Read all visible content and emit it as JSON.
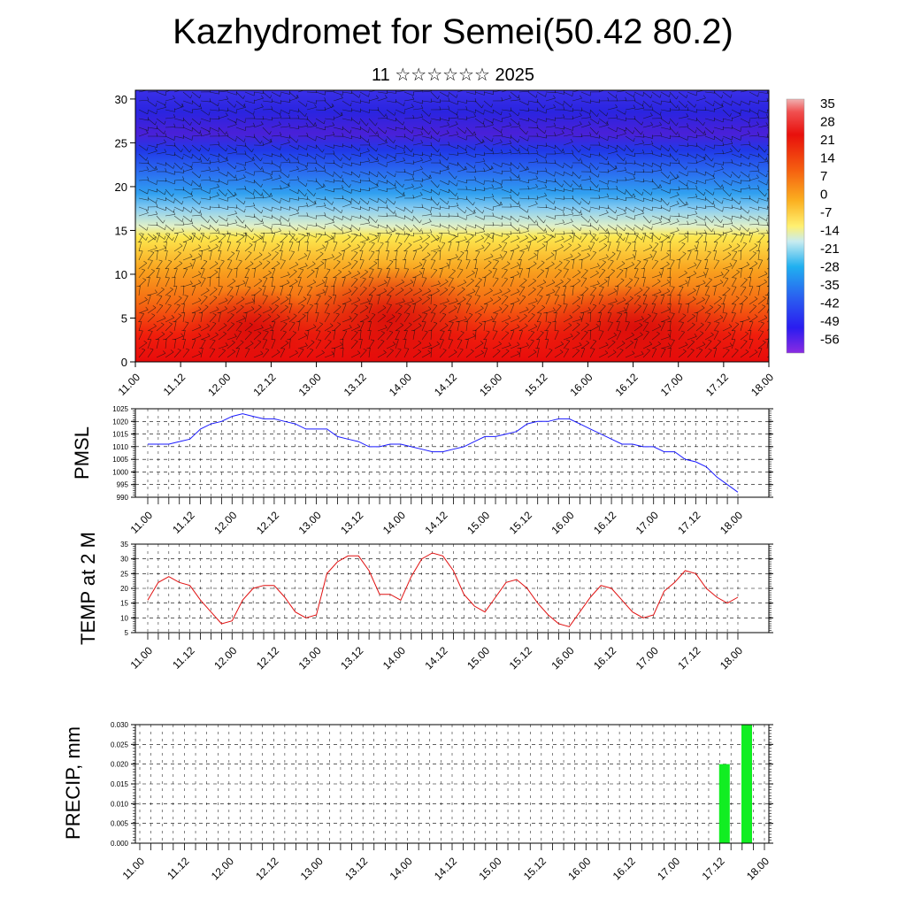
{
  "header": {
    "title": "Kazhydromet for Semei(50.42 80.2)",
    "subtitle": "11 ☆☆☆☆☆☆ 2025"
  },
  "chart_data": [
    {
      "type": "heatmap",
      "title": "Kazhydromet for Semei(50.42 80.2)",
      "subtitle": "11 ☆☆☆☆☆☆ 2025",
      "x_ticks": [
        "11.00",
        "11.12",
        "12.00",
        "12.12",
        "13.00",
        "13.12",
        "14.00",
        "14.12",
        "15.00",
        "15.12",
        "16.00",
        "16.12",
        "17.00",
        "17.12",
        "18.00"
      ],
      "y_ticks": [
        0,
        5,
        10,
        15,
        20,
        25,
        30
      ],
      "ylim": [
        0,
        31
      ],
      "colorbar_labels": [
        "35",
        "28",
        "21",
        "14",
        "7",
        "0",
        "-7",
        "-14",
        "-21",
        "-28",
        "-35",
        "-42",
        "-49",
        "-56"
      ],
      "description_layers": "temperature shading with wind barbs",
      "colors": {
        "hot": "#e8100c",
        "mid": "#fde24a",
        "cold": "#2634f0"
      }
    },
    {
      "type": "line",
      "ylabel": "PMSL",
      "ylim": [
        990,
        1025
      ],
      "y_ticks": [
        990,
        995,
        1000,
        1005,
        1010,
        1015,
        1020,
        1025
      ],
      "x_ticks": [
        "11.00",
        "11.12",
        "12.00",
        "12.12",
        "13.00",
        "13.12",
        "14.00",
        "14.12",
        "15.00",
        "15.12",
        "16.00",
        "16.12",
        "17.00",
        "17.12",
        "18.00"
      ],
      "color": "#1a1aff",
      "x_hours": [
        0,
        3,
        6,
        9,
        12,
        15,
        18,
        21,
        24,
        27,
        30,
        33,
        36,
        39,
        42,
        45,
        48,
        51,
        54,
        57,
        60,
        63,
        66,
        69,
        72,
        75,
        78,
        81,
        84,
        87,
        90,
        93,
        96,
        99,
        102,
        105,
        108,
        111,
        114,
        117,
        120,
        123,
        126,
        129,
        132,
        135,
        138,
        141,
        144,
        147,
        150,
        153,
        156,
        159,
        162,
        165,
        168
      ],
      "values": [
        1011,
        1011,
        1011,
        1012,
        1013,
        1017,
        1019,
        1020,
        1022,
        1023,
        1022,
        1021,
        1021,
        1020,
        1019,
        1017,
        1017,
        1017,
        1014,
        1013,
        1012,
        1010,
        1010,
        1011,
        1011,
        1010,
        1009,
        1008,
        1008,
        1009,
        1010,
        1012,
        1014,
        1014,
        1015,
        1016,
        1019,
        1020,
        1020,
        1021,
        1021,
        1019,
        1017,
        1015,
        1013,
        1011,
        1011,
        1010,
        1010,
        1008,
        1008,
        1005,
        1004,
        1002,
        998,
        995,
        992
      ]
    },
    {
      "type": "line",
      "ylabel": "TEMP at 2 M",
      "ylim": [
        5,
        35
      ],
      "y_ticks": [
        5,
        10,
        15,
        20,
        25,
        30,
        35
      ],
      "x_ticks": [
        "11.00",
        "11.12",
        "12.00",
        "12.12",
        "13.00",
        "13.12",
        "14.00",
        "14.12",
        "15.00",
        "15.12",
        "16.00",
        "16.12",
        "17.00",
        "17.12",
        "18.00"
      ],
      "color": "#e01010",
      "x_hours": [
        0,
        3,
        6,
        9,
        12,
        15,
        18,
        21,
        24,
        27,
        30,
        33,
        36,
        39,
        42,
        45,
        48,
        51,
        54,
        57,
        60,
        63,
        66,
        69,
        72,
        75,
        78,
        81,
        84,
        87,
        90,
        93,
        96,
        99,
        102,
        105,
        108,
        111,
        114,
        117,
        120,
        123,
        126,
        129,
        132,
        135,
        138,
        141,
        144,
        147,
        150,
        153,
        156,
        159,
        162,
        165,
        168
      ],
      "values": [
        16,
        22,
        24,
        22,
        21,
        16,
        12,
        8,
        9,
        16,
        20,
        21,
        21,
        17,
        12,
        10,
        11,
        25,
        29,
        31,
        31,
        26,
        18,
        18,
        16,
        24,
        30,
        32,
        31,
        26,
        18,
        14,
        12,
        17,
        22,
        23,
        20,
        15,
        11,
        8,
        7,
        12,
        17,
        21,
        20,
        16,
        12,
        10,
        11,
        19,
        22,
        26,
        25,
        20,
        17,
        15,
        17
      ]
    },
    {
      "type": "bar",
      "ylabel": "PRECIP, mm",
      "ylim": [
        0,
        0.03
      ],
      "y_ticks": [
        "0.000",
        "0.005",
        "0.010",
        "0.015",
        "0.020",
        "0.025",
        "0.030"
      ],
      "x_ticks": [
        "11.00",
        "11.12",
        "12.00",
        "12.12",
        "13.00",
        "13.12",
        "14.00",
        "14.12",
        "15.00",
        "15.12",
        "16.00",
        "16.12",
        "17.00",
        "17.12",
        "18.00"
      ],
      "color": "#11ee22",
      "bars": [
        {
          "x_hours": 162,
          "value": 0.02
        },
        {
          "x_hours": 168,
          "value": 0.03
        }
      ]
    }
  ]
}
